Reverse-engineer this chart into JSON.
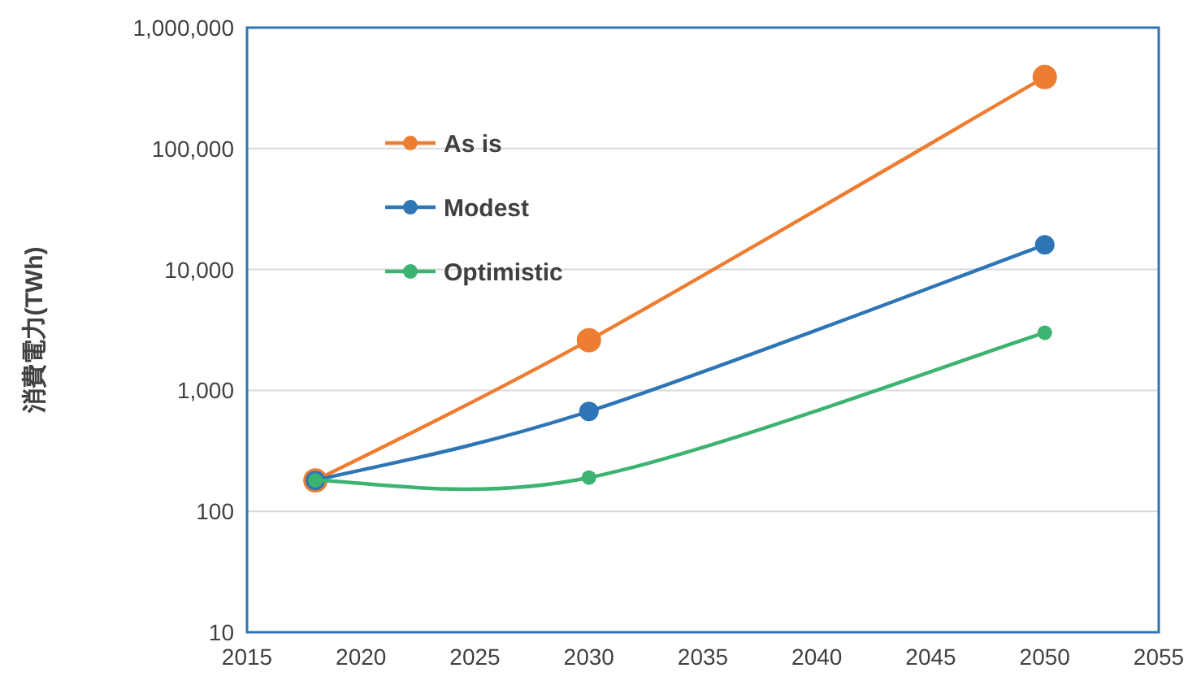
{
  "chart_data": {
    "type": "line",
    "ylabel": "消費電力(TWh)",
    "log": "y",
    "x": [
      2018,
      2030,
      2050
    ],
    "series": [
      {
        "name": "As is",
        "color": "#ed7d31",
        "values": [
          180,
          2600,
          390000
        ]
      },
      {
        "name": "Modest",
        "color": "#2e75b6",
        "values": [
          180,
          670,
          16000
        ]
      },
      {
        "name": "Optimistic",
        "color": "#3cb371",
        "values": [
          180,
          190,
          3000
        ]
      }
    ],
    "xlim": [
      2015,
      2055
    ],
    "xticks": [
      2015,
      2020,
      2025,
      2030,
      2035,
      2040,
      2045,
      2050,
      2055
    ],
    "ylim": [
      10,
      1000000
    ],
    "yticks": [
      {
        "value": 10,
        "label": "10"
      },
      {
        "value": 100,
        "label": "100"
      },
      {
        "value": 1000,
        "label": "1,000"
      },
      {
        "value": 10000,
        "label": "10,000"
      },
      {
        "value": 100000,
        "label": "100,000"
      },
      {
        "value": 1000000,
        "label": "1,000,000"
      }
    ],
    "grid": "y",
    "legend": "top left",
    "marker": "circle",
    "line_style": "solid"
  }
}
